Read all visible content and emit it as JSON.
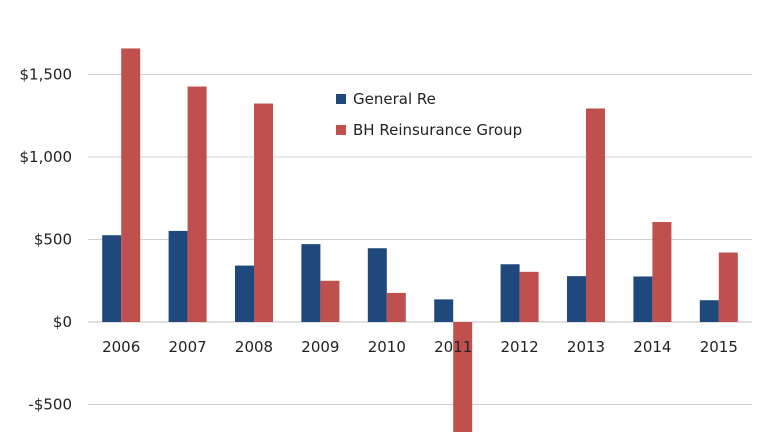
{
  "chart_data": {
    "type": "bar",
    "categories": [
      "2006",
      "2007",
      "2008",
      "2009",
      "2010",
      "2011",
      "2012",
      "2013",
      "2014",
      "2015"
    ],
    "series": [
      {
        "name": "General Re",
        "color": "#1f497d",
        "values": [
          526,
          552,
          342,
          472,
          447,
          137,
          350,
          278,
          276,
          132
        ]
      },
      {
        "name": "BH Reinsurance Group",
        "color": "#c0504d",
        "values": [
          1658,
          1427,
          1324,
          250,
          176,
          -714,
          304,
          1294,
          606,
          421
        ]
      }
    ],
    "y_ticks": [
      {
        "value": 1500,
        "label": "$1,500"
      },
      {
        "value": 1000,
        "label": "$1,000"
      },
      {
        "value": 500,
        "label": "$500"
      },
      {
        "value": 0,
        "label": "$0"
      },
      {
        "value": -500,
        "label": "-$500"
      }
    ],
    "ylim": [
      -650,
      1980
    ],
    "grid": true,
    "legend": "upper-center"
  }
}
